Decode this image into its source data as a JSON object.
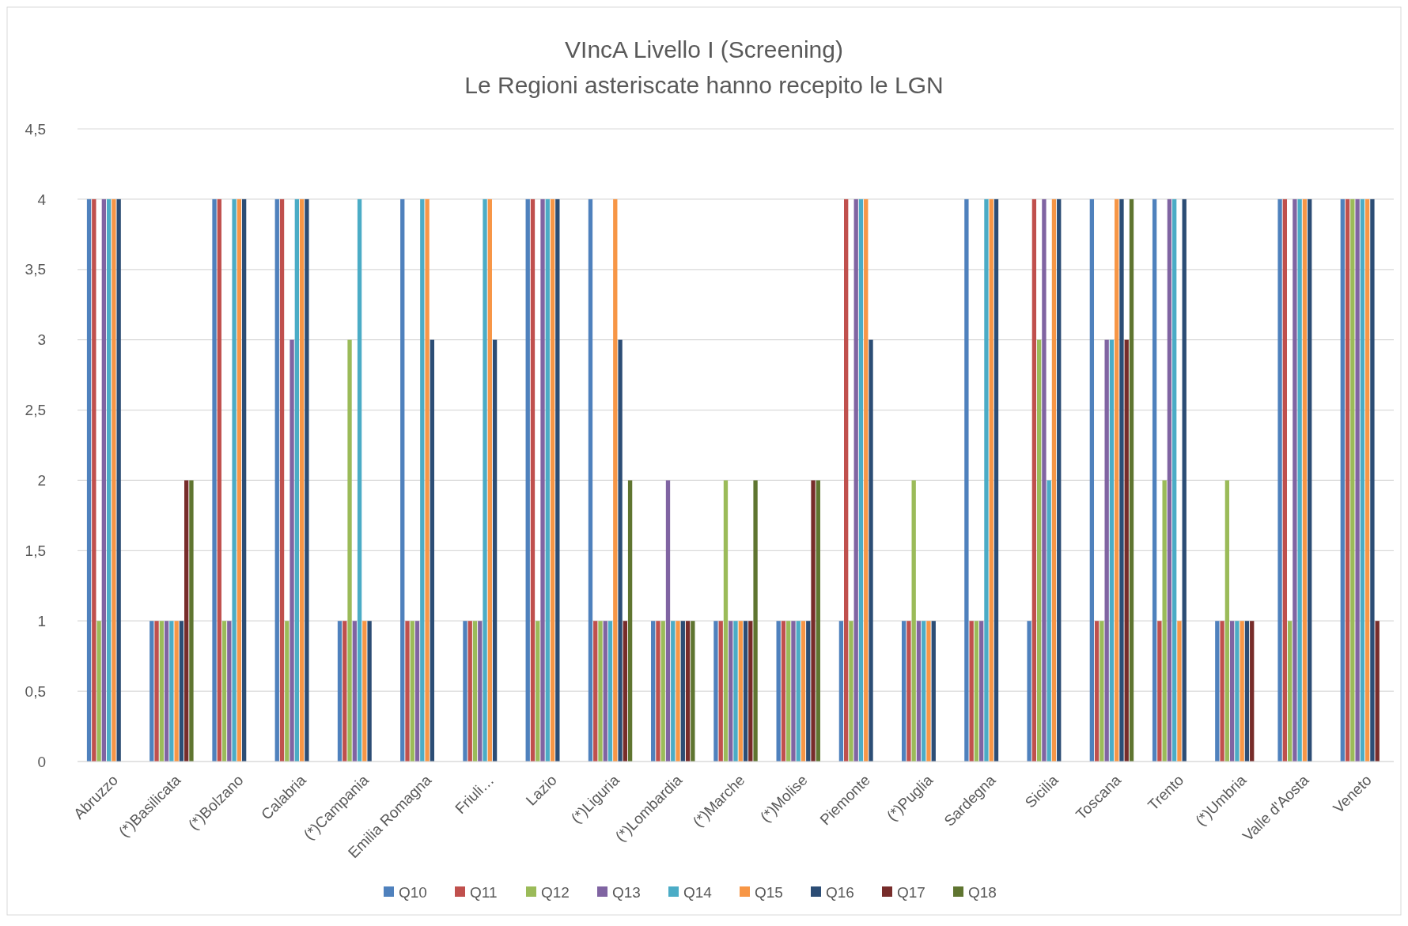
{
  "chart_data": {
    "type": "bar",
    "title": "VIncA Livello I (Screening)",
    "subtitle": "Le Regioni asteriscate hanno recepito le LGN",
    "categories": [
      "Abruzzo",
      "(*)Basilicata",
      "(*)Bolzano",
      "Calabria",
      "(*)Campania",
      "Emilia Romagna",
      "Friuli…",
      "Lazio",
      "(*)Liguria",
      "(*)Lombardia",
      "(*)Marche",
      "(*)Molise",
      "Piemonte",
      "(*)Puglia",
      "Sardegna",
      "Sicilia",
      "Toscana",
      "Trento",
      "(*)Umbria",
      "Valle d'Aosta",
      "Veneto"
    ],
    "series": [
      {
        "name": "Q10",
        "color": "#4f81bd",
        "values": [
          4,
          1,
          4,
          4,
          1,
          4,
          1,
          4,
          4,
          1,
          1,
          1,
          1,
          1,
          4,
          1,
          4,
          4,
          1,
          4,
          4
        ]
      },
      {
        "name": "Q11",
        "color": "#c0504d",
        "values": [
          4,
          1,
          4,
          4,
          1,
          1,
          1,
          4,
          1,
          1,
          1,
          1,
          4,
          1,
          1,
          4,
          1,
          1,
          1,
          4,
          4
        ]
      },
      {
        "name": "Q12",
        "color": "#9bbb59",
        "values": [
          1,
          1,
          1,
          1,
          3,
          1,
          1,
          1,
          1,
          1,
          2,
          1,
          1,
          2,
          1,
          3,
          1,
          2,
          2,
          1,
          4
        ]
      },
      {
        "name": "Q13",
        "color": "#8064a2",
        "values": [
          4,
          1,
          1,
          3,
          1,
          1,
          1,
          4,
          1,
          2,
          1,
          1,
          4,
          1,
          1,
          4,
          3,
          4,
          1,
          4,
          4
        ]
      },
      {
        "name": "Q14",
        "color": "#4bacc6",
        "values": [
          4,
          1,
          4,
          4,
          4,
          4,
          4,
          4,
          1,
          1,
          1,
          1,
          4,
          1,
          4,
          2,
          3,
          4,
          1,
          4,
          4
        ]
      },
      {
        "name": "Q15",
        "color": "#f79646",
        "values": [
          4,
          1,
          4,
          4,
          1,
          4,
          4,
          4,
          4,
          1,
          1,
          1,
          4,
          1,
          4,
          4,
          4,
          1,
          1,
          4,
          4
        ]
      },
      {
        "name": "Q16",
        "color": "#2c4d75",
        "values": [
          4,
          1,
          4,
          4,
          1,
          3,
          3,
          4,
          3,
          1,
          1,
          1,
          3,
          1,
          4,
          4,
          4,
          4,
          1,
          4,
          4
        ]
      },
      {
        "name": "Q17",
        "color": "#772c2a",
        "values": [
          null,
          2,
          null,
          null,
          null,
          null,
          null,
          null,
          1,
          1,
          1,
          2,
          null,
          null,
          null,
          null,
          3,
          null,
          1,
          null,
          1
        ]
      },
      {
        "name": "Q18",
        "color": "#5f7530",
        "values": [
          null,
          2,
          null,
          null,
          null,
          null,
          null,
          null,
          2,
          1,
          2,
          2,
          null,
          null,
          null,
          null,
          4,
          null,
          null,
          null,
          null
        ]
      }
    ],
    "ylim": [
      0,
      4.5
    ],
    "yticks": [
      0,
      {
        "value": 0.5,
        "label": "0,5"
      },
      1,
      {
        "value": 1.5,
        "label": "1,5"
      },
      2,
      {
        "value": 2.5,
        "label": "2,5"
      },
      3,
      {
        "value": 3.5,
        "label": "3,5"
      },
      4,
      {
        "value": 4.5,
        "label": "4,5"
      }
    ],
    "grid": "y",
    "legend": "bottom"
  }
}
